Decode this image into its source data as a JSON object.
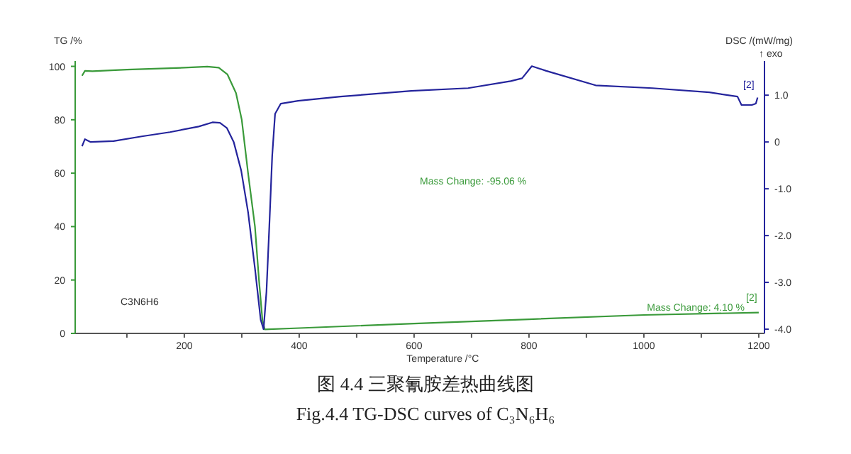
{
  "chart_data": {
    "type": "line",
    "title": "图 4.4  三聚氰胺差热曲线图",
    "subtitle": "Fig.4.4 TG-DSC curves of C₃N₆H₆",
    "xlabel": "Temperature /°C",
    "ylabel": "TG /%",
    "y2label": "DSC /(mW/mg)",
    "xlim": [
      10,
      1210
    ],
    "xticks": [
      {
        "value": 100,
        "label": null
      },
      200,
      {
        "value": 300,
        "label": null
      },
      400,
      {
        "value": 500,
        "label": null
      },
      600,
      {
        "value": 700,
        "label": null
      },
      800,
      {
        "value": 900,
        "label": null
      },
      1000,
      {
        "value": 1100,
        "label": null
      },
      1200
    ],
    "ylim": [
      0,
      102
    ],
    "yticks": [
      0,
      20,
      40,
      60,
      80,
      100
    ],
    "y2lim": [
      -4.09,
      1.73
    ],
    "y2ticks": [
      {
        "value": -4,
        "label": "-4.0"
      },
      {
        "value": -3,
        "label": "-3.0"
      },
      {
        "value": -2,
        "label": "-2.0"
      },
      {
        "value": -1,
        "label": "-1.0"
      },
      0,
      {
        "value": 1,
        "label": "1.0"
      }
    ],
    "grid": false,
    "series": [
      {
        "color": "#3a9a3a",
        "x": [
          22,
          27,
          40,
          100,
          200,
          240,
          260,
          275,
          290,
          300,
          311,
          323,
          330,
          336,
          340,
          400,
          600,
          800,
          1000,
          1200
        ],
        "values": [
          96.5,
          98.3,
          98.2,
          98.8,
          99.5,
          99.9,
          99.5,
          97,
          90,
          80,
          60,
          40,
          20,
          5,
          1.5,
          2,
          3.7,
          5.3,
          6.9,
          7.8
        ]
      },
      {
        "color": "#24249c",
        "axis": "y2",
        "x": [
          22,
          27,
          37,
          77,
          126,
          175,
          225,
          249,
          262,
          274,
          286,
          299,
          311,
          323,
          333,
          338,
          343,
          348,
          353,
          358,
          368,
          398,
          472,
          595,
          694,
          768,
          788,
          805,
          830,
          916,
          1015,
          1114,
          1163,
          1170,
          1188,
          1195,
          1198
        ],
        "values": [
          -0.09,
          0.06,
          0,
          0.02,
          0.12,
          0.21,
          0.33,
          0.42,
          0.41,
          0.3,
          0,
          -0.61,
          -1.5,
          -2.7,
          -3.8,
          -4,
          -3.2,
          -1.8,
          -0.3,
          0.6,
          0.82,
          0.88,
          0.97,
          1.09,
          1.15,
          1.3,
          1.36,
          1.62,
          1.52,
          1.21,
          1.15,
          1.06,
          0.97,
          0.79,
          0.79,
          0.82,
          0.95
        ]
      }
    ],
    "annotations": [
      "Mass Change: -95.06 %",
      "Mass Change: 4.10 %",
      "[2]",
      "[2]",
      "C3N6H6",
      "↑ exo"
    ]
  }
}
